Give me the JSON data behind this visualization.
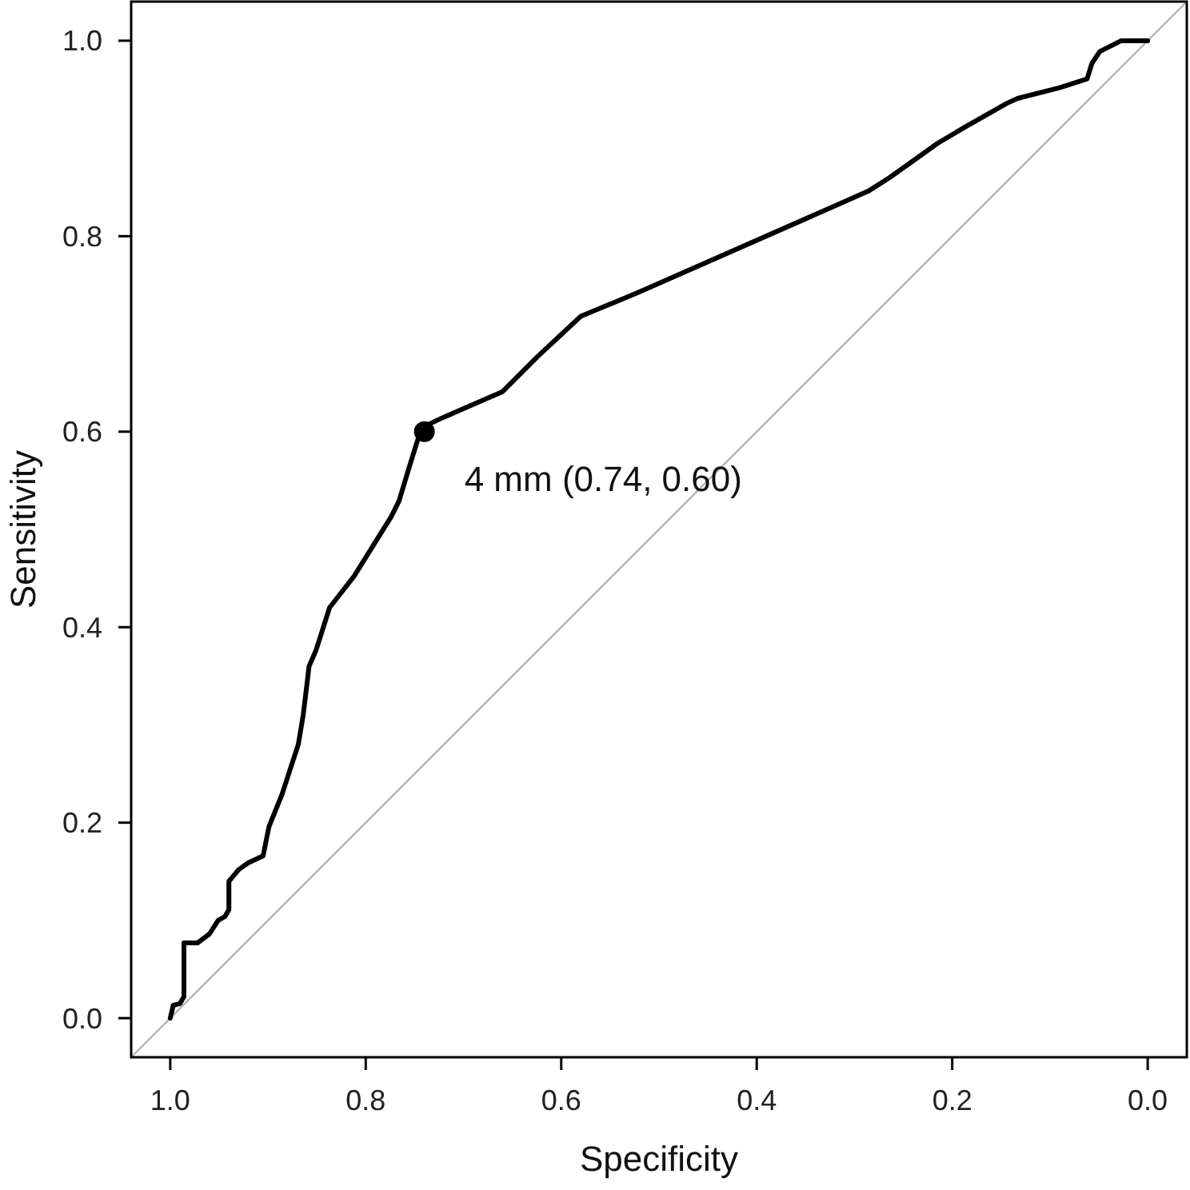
{
  "chart_data": {
    "type": "line",
    "xlabel": "Specificity",
    "ylabel": "Sensitivity",
    "xlim": [
      1.04,
      -0.04
    ],
    "ylim": [
      -0.04,
      1.04
    ],
    "xticks": [
      {
        "value": 1,
        "label": "1.0"
      },
      {
        "value": 0.8,
        "label": "0.8"
      },
      {
        "value": 0.6,
        "label": "0.6"
      },
      {
        "value": 0.4,
        "label": "0.4"
      },
      {
        "value": 0.2,
        "label": "0.2"
      },
      {
        "value": 0,
        "label": "0.0"
      }
    ],
    "yticks": [
      {
        "value": 0,
        "label": "0.0"
      },
      {
        "value": 0.2,
        "label": "0.2"
      },
      {
        "value": 0.4,
        "label": "0.4"
      },
      {
        "value": 0.6,
        "label": "0.6"
      },
      {
        "value": 0.8,
        "label": "0.8"
      },
      {
        "value": 1,
        "label": "1.0"
      }
    ],
    "grid": false,
    "marker": "none",
    "line_style": "solid",
    "series": [
      {
        "color": "#b4b4b4",
        "x": [
          1.04,
          -0.04
        ],
        "values": [
          -0.04,
          1.04
        ]
      },
      {
        "color": "#000000",
        "x": [
          1.0,
          0.997,
          0.99,
          0.986,
          0.986,
          0.972,
          0.96,
          0.951,
          0.944,
          0.94,
          0.94,
          0.93,
          0.92,
          0.905,
          0.899,
          0.886,
          0.869,
          0.864,
          0.86,
          0.858,
          0.851,
          0.837,
          0.812,
          0.774,
          0.766,
          0.756,
          0.743,
          0.722,
          0.66,
          0.624,
          0.58,
          0.52,
          0.286,
          0.264,
          0.215,
          0.188,
          0.144,
          0.133,
          0.09,
          0.062,
          0.057,
          0.049,
          0.027,
          0.0
        ],
        "values": [
          0.0,
          0.013,
          0.015,
          0.022,
          0.077,
          0.077,
          0.086,
          0.1,
          0.104,
          0.111,
          0.14,
          0.152,
          0.159,
          0.166,
          0.196,
          0.228,
          0.28,
          0.31,
          0.343,
          0.36,
          0.376,
          0.42,
          0.452,
          0.513,
          0.529,
          0.562,
          0.604,
          0.614,
          0.641,
          0.677,
          0.718,
          0.743,
          0.846,
          0.86,
          0.895,
          0.911,
          0.936,
          0.941,
          0.952,
          0.961,
          0.977,
          0.989,
          1.0,
          1.0
        ]
      },
      {
        "type": "scatter",
        "color": "#000000",
        "marker": "circle",
        "x": [
          0.74
        ],
        "values": [
          0.6
        ]
      }
    ],
    "annotations": [
      {
        "text": "4 mm (0.74, 0.60)",
        "x": 0.74,
        "y": 0.6
      }
    ]
  }
}
